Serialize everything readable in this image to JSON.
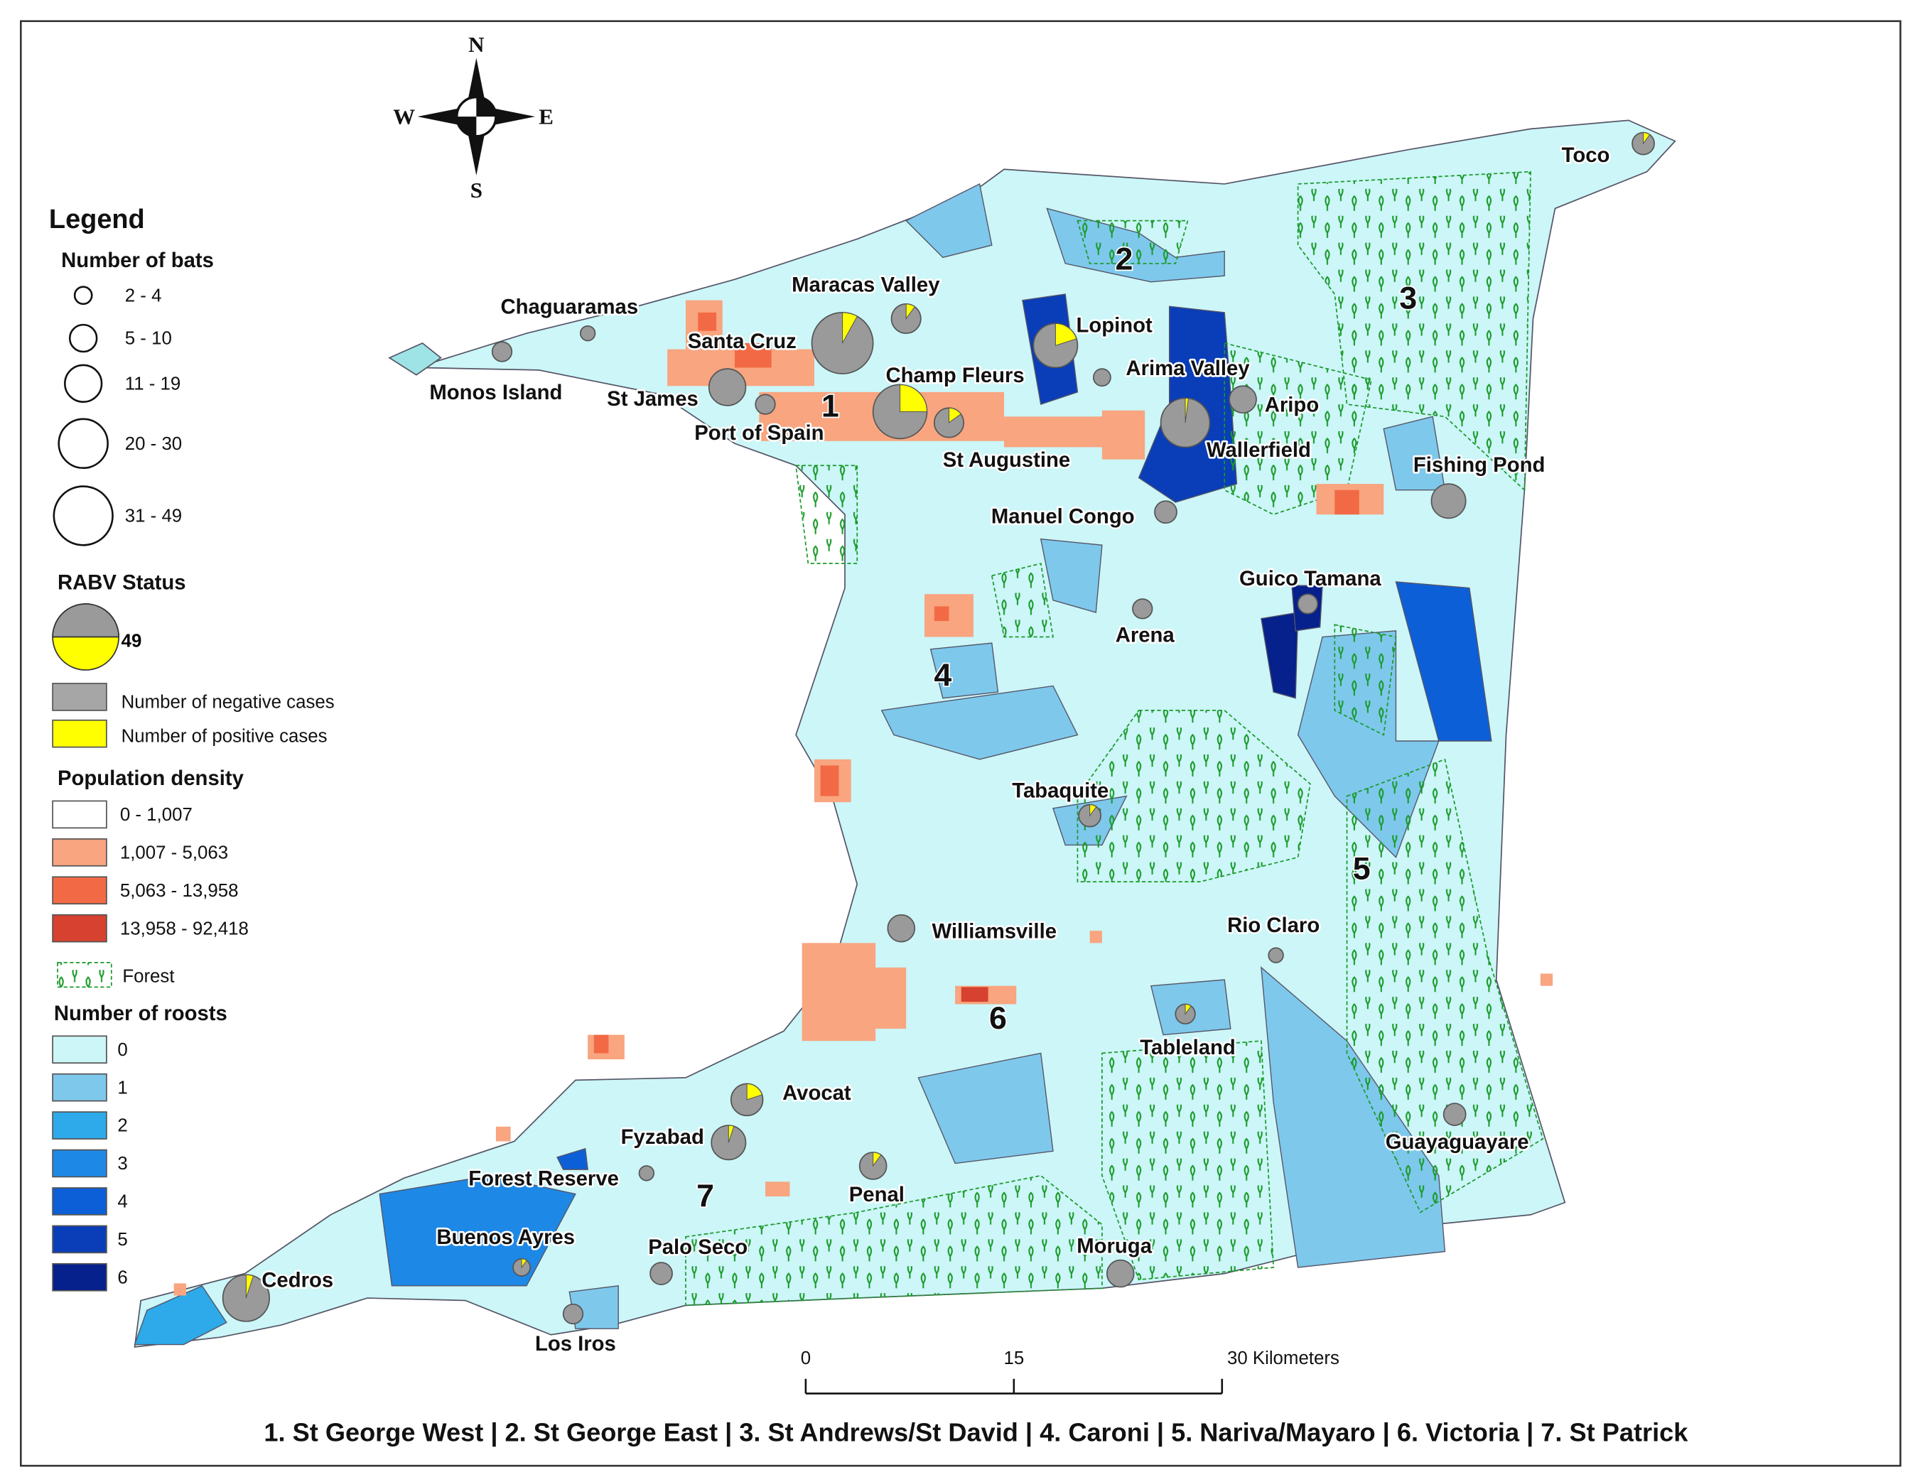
{
  "compass": {
    "north": "N",
    "west": "W",
    "east": "E",
    "south": "S"
  },
  "legend": {
    "title": "Legend",
    "bats": {
      "title": "Number of bats",
      "classes": [
        "2 - 4",
        "5 - 10",
        "11 - 19",
        "20 - 30",
        "31 - 49"
      ]
    },
    "rabv": {
      "title": "RABV Status",
      "example": "49",
      "negative": "Number of negative cases",
      "positive": "Number of positive cases"
    },
    "density": {
      "title": "Population density",
      "classes": [
        "0 - 1,007",
        "1,007 - 5,063",
        "5,063 - 13,958",
        "13,958 - 92,418"
      ]
    },
    "forest": "Forest",
    "roosts": {
      "title": "Number of roosts",
      "classes": [
        "0",
        "1",
        "2",
        "3",
        "4",
        "5",
        "6"
      ]
    }
  },
  "places": [
    "Chaguaramas",
    "Monos Island",
    "Santa Cruz",
    "Maracas Valley",
    "St James",
    "Port of Spain",
    "Champ Fleurs",
    "Lopinot",
    "Arima Valley",
    "Aripo",
    "St Augustine",
    "Wallerfield",
    "Fishing Pond",
    "Manuel Congo",
    "Guico Tamana",
    "Arena",
    "Toco",
    "Tabaquite",
    "Williamsville",
    "Rio Claro",
    "Tableland",
    "Avocat",
    "Fyzabad",
    "Penal",
    "Guayaguayare",
    "Forest Reserve",
    "Buenos Ayres",
    "Palo Seco",
    "Moruga",
    "Cedros",
    "Los Iros"
  ],
  "districts": [
    "1",
    "2",
    "3",
    "4",
    "5",
    "6",
    "7"
  ],
  "scale_bar": {
    "labels": [
      "0",
      "15",
      "30 Kilometers"
    ]
  },
  "caption": "1. St George West | 2. St George East | 3. St Andrews/St David | 4. Caroni | 5. Nariva/Mayaro | 6. Victoria | 7. St Patrick"
}
